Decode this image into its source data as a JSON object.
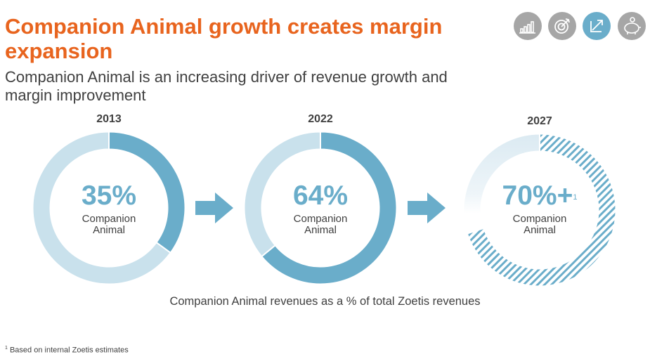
{
  "title": "Companion Animal growth creates margin expansion",
  "subtitle": "Companion Animal is an increasing driver of revenue growth and margin improvement",
  "icons": [
    "bar-chart-icon",
    "target-icon",
    "growth-arrow-icon",
    "piggy-bank-icon"
  ],
  "colors": {
    "title": "#e8641e",
    "accent": "#6aadca",
    "light": "#c9e1ec",
    "icon_gray": "#a6a6a6"
  },
  "chart_data": {
    "type": "pie",
    "series_label": "Companion Animal",
    "categories": [
      "2013",
      "2022",
      "2027"
    ],
    "values": [
      35,
      64,
      70
    ],
    "value_labels": [
      "35%",
      "64%",
      "70%+"
    ],
    "estimated": [
      false,
      false,
      true
    ],
    "footnote_marker": [
      "",
      "",
      "1"
    ],
    "caption": "Companion Animal revenues as a % of total Zoetis revenues"
  },
  "footnote": {
    "marker": "1",
    "text": "Based on internal Zoetis estimates"
  }
}
